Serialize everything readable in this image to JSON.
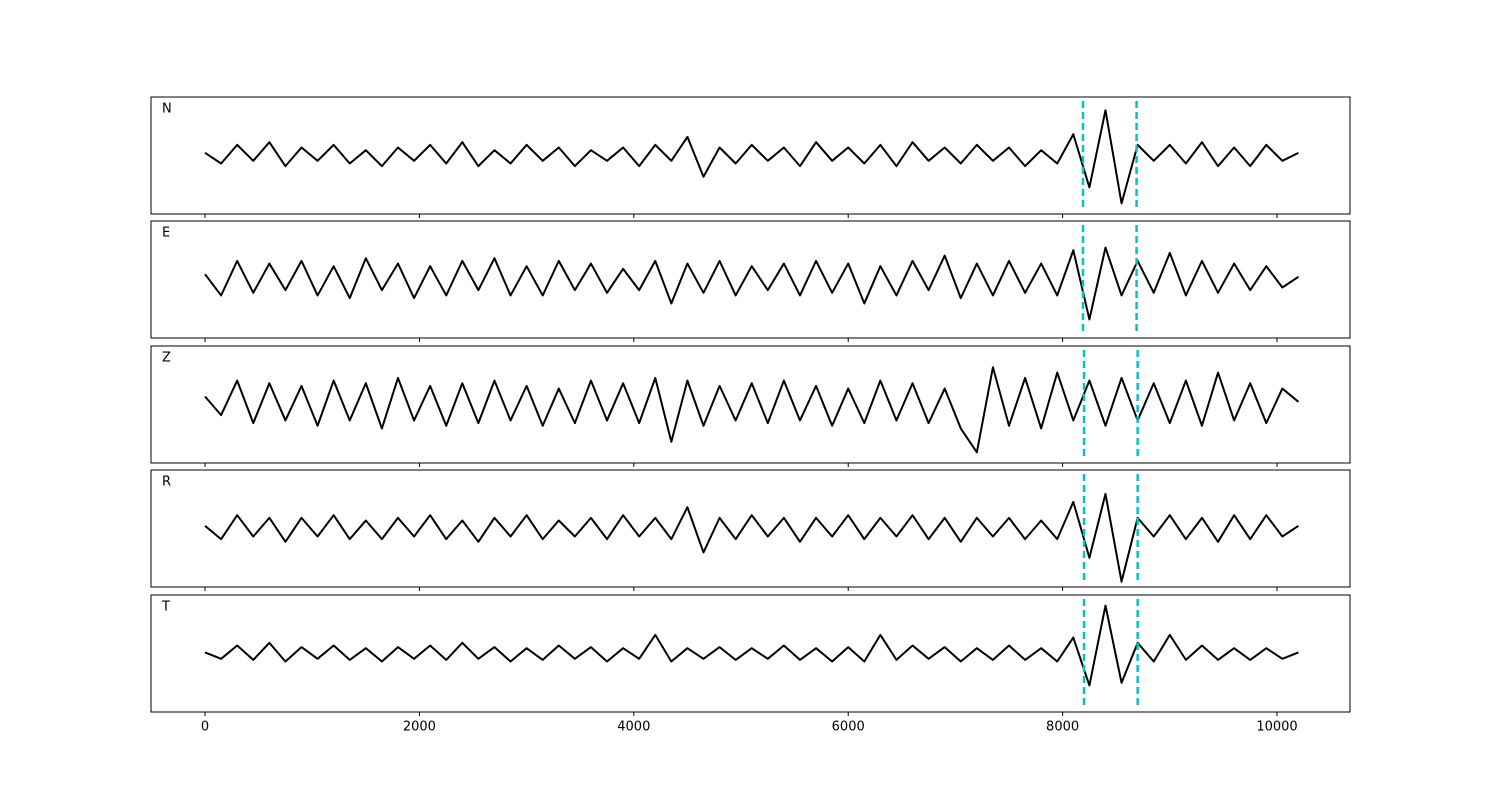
{
  "chart_data": {
    "type": "line",
    "subplots": true,
    "color": "#000000",
    "xlim": [
      -504,
      10681
    ],
    "xticks": [
      0,
      2000,
      4000,
      6000,
      8000,
      10000
    ],
    "ylim": [
      -1.1,
      1.1
    ],
    "x": [
      0,
      150,
      300,
      450,
      600,
      750,
      900,
      1050,
      1200,
      1350,
      1500,
      1650,
      1800,
      1950,
      2100,
      2250,
      2400,
      2550,
      2700,
      2850,
      3000,
      3150,
      3300,
      3450,
      3600,
      3750,
      3900,
      4050,
      4200,
      4350,
      4500,
      4650,
      4800,
      4950,
      5100,
      5250,
      5400,
      5550,
      5700,
      5850,
      6000,
      6150,
      6300,
      6450,
      6600,
      6750,
      6900,
      7050,
      7200,
      7350,
      7500,
      7650,
      7800,
      7950,
      8100,
      8250,
      8400,
      8550,
      8700,
      8850,
      9000,
      9150,
      9300,
      9450,
      9600,
      9750,
      9900,
      10050,
      10200
    ],
    "pick_color": "#00c5c5",
    "series": [
      {
        "name": "N",
        "picks": [
          8190,
          8690
        ],
        "values": [
          0.05,
          -0.15,
          0.2,
          -0.1,
          0.25,
          -0.2,
          0.15,
          -0.1,
          0.2,
          -0.15,
          0.1,
          -0.2,
          0.15,
          -0.1,
          0.2,
          -0.15,
          0.25,
          -0.2,
          0.1,
          -0.15,
          0.2,
          -0.1,
          0.15,
          -0.2,
          0.1,
          -0.1,
          0.15,
          -0.2,
          0.2,
          -0.1,
          0.35,
          -0.4,
          0.15,
          -0.15,
          0.2,
          -0.1,
          0.15,
          -0.2,
          0.25,
          -0.1,
          0.15,
          -0.15,
          0.2,
          -0.2,
          0.25,
          -0.1,
          0.15,
          -0.15,
          0.2,
          -0.1,
          0.15,
          -0.2,
          0.1,
          -0.15,
          0.4,
          -0.6,
          0.85,
          -0.9,
          0.2,
          -0.1,
          0.2,
          -0.15,
          0.25,
          -0.2,
          0.15,
          -0.2,
          0.2,
          -0.1,
          0.05
        ]
      },
      {
        "name": "E",
        "picks": [
          8190,
          8690
        ],
        "values": [
          0.1,
          -0.3,
          0.35,
          -0.25,
          0.3,
          -0.2,
          0.35,
          -0.3,
          0.25,
          -0.35,
          0.4,
          -0.2,
          0.3,
          -0.35,
          0.25,
          -0.3,
          0.35,
          -0.2,
          0.4,
          -0.3,
          0.25,
          -0.3,
          0.35,
          -0.2,
          0.3,
          -0.25,
          0.2,
          -0.2,
          0.35,
          -0.45,
          0.3,
          -0.25,
          0.35,
          -0.3,
          0.25,
          -0.2,
          0.3,
          -0.3,
          0.35,
          -0.25,
          0.3,
          -0.45,
          0.25,
          -0.3,
          0.35,
          -0.2,
          0.45,
          -0.35,
          0.3,
          -0.3,
          0.35,
          -0.25,
          0.3,
          -0.3,
          0.55,
          -0.75,
          0.6,
          -0.3,
          0.35,
          -0.25,
          0.5,
          -0.3,
          0.35,
          -0.25,
          0.3,
          -0.2,
          0.25,
          -0.15,
          0.05
        ]
      },
      {
        "name": "Z",
        "picks": [
          8200,
          8700
        ],
        "values": [
          0.15,
          -0.2,
          0.45,
          -0.35,
          0.4,
          -0.3,
          0.35,
          -0.4,
          0.45,
          -0.3,
          0.4,
          -0.45,
          0.5,
          -0.3,
          0.35,
          -0.4,
          0.4,
          -0.35,
          0.45,
          -0.3,
          0.35,
          -0.4,
          0.3,
          -0.35,
          0.45,
          -0.3,
          0.4,
          -0.35,
          0.5,
          -0.7,
          0.45,
          -0.4,
          0.35,
          -0.3,
          0.4,
          -0.35,
          0.45,
          -0.3,
          0.35,
          -0.4,
          0.3,
          -0.35,
          0.45,
          -0.3,
          0.4,
          -0.35,
          0.3,
          -0.45,
          -0.9,
          0.7,
          -0.4,
          0.5,
          -0.45,
          0.6,
          -0.3,
          0.45,
          -0.4,
          0.5,
          -0.3,
          0.4,
          -0.35,
          0.45,
          -0.4,
          0.6,
          -0.3,
          0.4,
          -0.35,
          0.3,
          0.05
        ]
      },
      {
        "name": "R",
        "picks": [
          8200,
          8700
        ],
        "values": [
          0.05,
          -0.2,
          0.25,
          -0.15,
          0.2,
          -0.25,
          0.2,
          -0.15,
          0.25,
          -0.2,
          0.15,
          -0.2,
          0.2,
          -0.15,
          0.25,
          -0.2,
          0.15,
          -0.25,
          0.2,
          -0.15,
          0.25,
          -0.2,
          0.15,
          -0.15,
          0.2,
          -0.2,
          0.25,
          -0.15,
          0.2,
          -0.2,
          0.4,
          -0.45,
          0.2,
          -0.2,
          0.25,
          -0.15,
          0.2,
          -0.25,
          0.2,
          -0.15,
          0.25,
          -0.2,
          0.2,
          -0.15,
          0.25,
          -0.2,
          0.2,
          -0.25,
          0.2,
          -0.15,
          0.2,
          -0.2,
          0.15,
          -0.2,
          0.5,
          -0.55,
          0.65,
          -1.0,
          0.2,
          -0.15,
          0.25,
          -0.2,
          0.2,
          -0.25,
          0.25,
          -0.2,
          0.25,
          -0.15,
          0.05
        ]
      },
      {
        "name": "T",
        "picks": [
          8200,
          8700
        ],
        "values": [
          0.02,
          -0.1,
          0.15,
          -0.12,
          0.2,
          -0.15,
          0.12,
          -0.1,
          0.15,
          -0.12,
          0.1,
          -0.15,
          0.12,
          -0.1,
          0.15,
          -0.12,
          0.2,
          -0.1,
          0.12,
          -0.15,
          0.1,
          -0.12,
          0.15,
          -0.1,
          0.12,
          -0.15,
          0.1,
          -0.1,
          0.35,
          -0.15,
          0.1,
          -0.1,
          0.12,
          -0.12,
          0.1,
          -0.1,
          0.15,
          -0.12,
          0.1,
          -0.15,
          0.12,
          -0.15,
          0.35,
          -0.12,
          0.15,
          -0.1,
          0.12,
          -0.15,
          0.1,
          -0.12,
          0.15,
          -0.12,
          0.1,
          -0.15,
          0.3,
          -0.6,
          0.9,
          -0.55,
          0.2,
          -0.15,
          0.35,
          -0.12,
          0.15,
          -0.12,
          0.1,
          -0.12,
          0.1,
          -0.1,
          0.02
        ]
      }
    ]
  }
}
